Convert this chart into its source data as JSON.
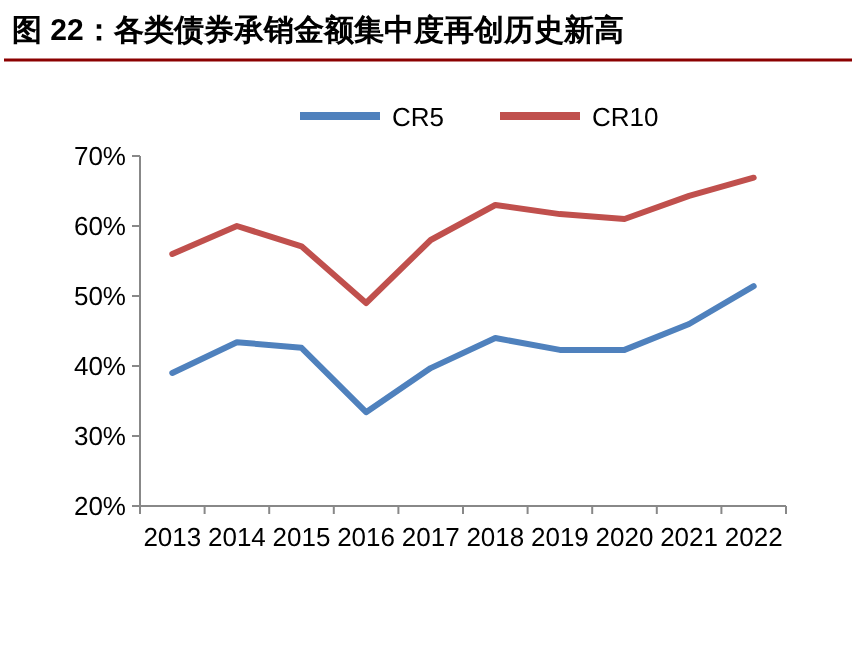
{
  "chart_data": {
    "type": "line",
    "title": "图 22：各类债券承销金额集中度再创历史新高",
    "categories": [
      "2013",
      "2014",
      "2015",
      "2016",
      "2017",
      "2018",
      "2019",
      "2020",
      "2021",
      "2022"
    ],
    "series": [
      {
        "name": "CR5",
        "color": "#4f81bd",
        "values": [
          39,
          43.4,
          42.6,
          33.4,
          39.7,
          44,
          42.3,
          42.3,
          46,
          51.4
        ]
      },
      {
        "name": "CR10",
        "color": "#c0504d",
        "values": [
          56,
          60,
          57.1,
          49,
          58,
          63,
          61.7,
          61,
          64.3,
          66.9
        ]
      }
    ],
    "ylim": [
      20,
      70
    ],
    "yticks": [
      {
        "value": 20,
        "label": "20%"
      },
      {
        "value": 30,
        "label": "30%"
      },
      {
        "value": 40,
        "label": "40%"
      },
      {
        "value": 50,
        "label": "50%"
      },
      {
        "value": 60,
        "label": "60%"
      },
      {
        "value": 70,
        "label": "70%"
      }
    ],
    "legend": "top",
    "grid": false,
    "marker": "none",
    "line_style": "solid"
  }
}
